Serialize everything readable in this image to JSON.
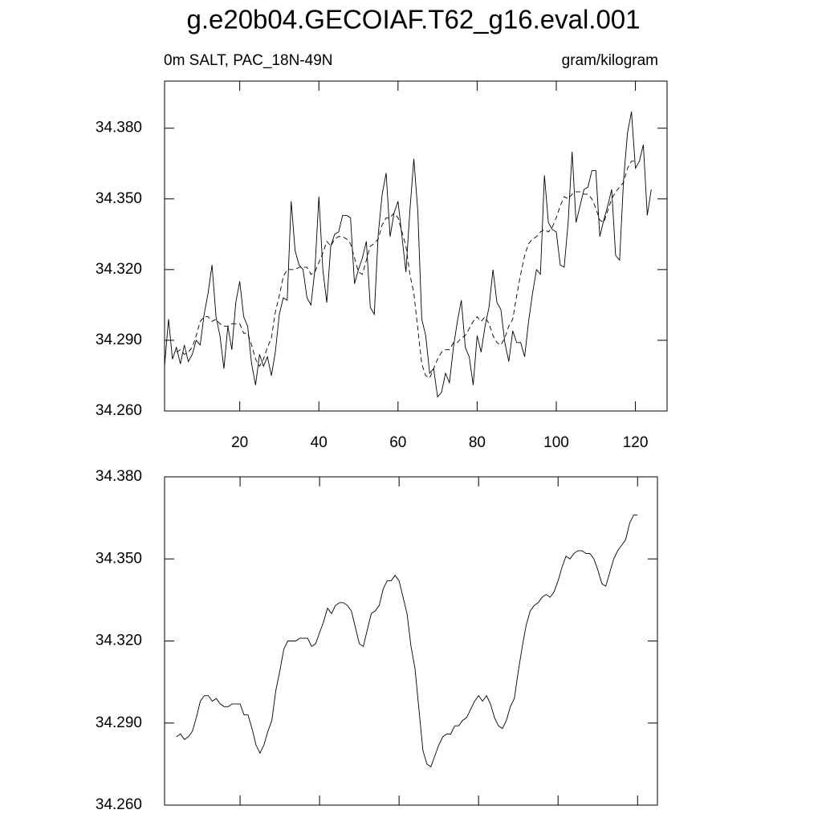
{
  "chart_data": [
    {
      "type": "line",
      "title": "g.e20b04.GECOIAF.T62_g16.eval.001",
      "subtitle_left": "0m SALT, PAC_18N-49N",
      "subtitle_right": "gram/kilogram",
      "xlim": [
        1,
        128
      ],
      "ylim": [
        34.26,
        34.4
      ],
      "xticks": [
        20,
        40,
        60,
        80,
        100,
        120
      ],
      "yticks": [
        {
          "value": 34.26,
          "label": "34.260"
        },
        {
          "value": 34.29,
          "label": "34.290"
        },
        {
          "value": 34.32,
          "label": "34.320"
        },
        {
          "value": 34.35,
          "label": "34.350"
        },
        {
          "value": 34.38,
          "label": "34.380"
        }
      ],
      "series": [
        {
          "color": "#000000",
          "dash": false,
          "x": [
            1,
            2,
            3,
            4,
            5,
            6,
            7,
            8,
            9,
            10,
            11,
            12,
            13,
            14,
            15,
            16,
            17,
            18,
            19,
            20,
            21,
            22,
            23,
            24,
            25,
            26,
            27,
            28,
            29,
            30,
            31,
            32,
            33,
            34,
            35,
            36,
            37,
            38,
            39,
            40,
            41,
            42,
            43,
            44,
            45,
            46,
            47,
            48,
            49,
            50,
            51,
            52,
            53,
            54,
            55,
            56,
            57,
            58,
            59,
            60,
            61,
            62,
            63,
            64,
            65,
            66,
            67,
            68,
            69,
            70,
            71,
            72,
            73,
            74,
            75,
            76,
            77,
            78,
            79,
            80,
            81,
            82,
            83,
            84,
            85,
            86,
            87,
            88,
            89,
            90,
            91,
            92,
            93,
            94,
            95,
            96,
            97,
            98,
            99,
            100,
            101,
            102,
            103,
            104,
            105,
            106,
            107,
            108,
            109,
            110,
            111,
            112,
            113,
            114,
            115,
            116,
            117,
            118,
            119,
            120,
            121,
            122,
            123,
            124
          ],
          "values": [
            34.279,
            34.299,
            34.282,
            34.287,
            34.28,
            34.288,
            34.281,
            34.284,
            34.29,
            34.288,
            34.301,
            34.31,
            34.322,
            34.3,
            34.292,
            34.278,
            34.296,
            34.286,
            34.306,
            34.315,
            34.3,
            34.296,
            34.28,
            34.271,
            34.284,
            34.279,
            34.283,
            34.275,
            34.285,
            34.301,
            34.308,
            34.307,
            34.349,
            34.328,
            34.322,
            34.32,
            34.308,
            34.305,
            34.32,
            34.351,
            34.32,
            34.306,
            34.33,
            34.335,
            34.336,
            34.343,
            34.343,
            34.342,
            34.314,
            34.32,
            34.325,
            34.332,
            34.304,
            34.301,
            34.335,
            34.352,
            34.361,
            34.334,
            34.344,
            34.349,
            34.334,
            34.319,
            34.345,
            34.367,
            34.345,
            34.299,
            34.292,
            34.276,
            34.278,
            34.266,
            34.268,
            34.276,
            34.272,
            34.287,
            34.298,
            34.307,
            34.287,
            34.283,
            34.271,
            34.292,
            34.285,
            34.296,
            34.304,
            34.32,
            34.306,
            34.303,
            34.289,
            34.281,
            34.294,
            34.289,
            34.289,
            34.283,
            34.298,
            34.31,
            34.32,
            34.318,
            34.36,
            34.34,
            34.337,
            34.336,
            34.322,
            34.321,
            34.34,
            34.37,
            34.34,
            34.347,
            34.354,
            34.355,
            34.362,
            34.362,
            34.334,
            34.341,
            34.347,
            34.354,
            34.326,
            34.324,
            34.358,
            34.378,
            34.387,
            34.363,
            34.366,
            34.373,
            34.343,
            34.354
          ]
        },
        {
          "color": "#000000",
          "dash": true,
          "x": [
            4,
            5,
            6,
            7,
            8,
            9,
            10,
            11,
            12,
            13,
            14,
            15,
            16,
            17,
            18,
            19,
            20,
            21,
            22,
            23,
            24,
            25,
            26,
            27,
            28,
            29,
            30,
            31,
            32,
            33,
            34,
            35,
            36,
            37,
            38,
            39,
            40,
            41,
            42,
            43,
            44,
            45,
            46,
            47,
            48,
            49,
            50,
            51,
            52,
            53,
            54,
            55,
            56,
            57,
            58,
            59,
            60,
            61,
            62,
            63,
            64,
            65,
            66,
            67,
            68,
            69,
            70,
            71,
            72,
            73,
            74,
            75,
            76,
            77,
            78,
            79,
            80,
            81,
            82,
            83,
            84,
            85,
            86,
            87,
            88,
            89,
            90,
            91,
            92,
            93,
            94,
            95,
            96,
            97,
            98,
            99,
            100,
            101,
            102,
            103,
            104,
            105,
            106,
            107,
            108,
            109,
            110,
            111,
            112,
            113,
            114,
            115,
            116,
            117,
            118,
            119,
            120
          ],
          "values": [
            34.285,
            34.286,
            34.284,
            34.285,
            34.287,
            34.292,
            34.298,
            34.3,
            34.3,
            34.298,
            34.299,
            34.297,
            34.296,
            34.296,
            34.297,
            34.297,
            34.297,
            34.293,
            34.293,
            34.288,
            34.282,
            34.279,
            34.282,
            34.287,
            34.291,
            34.302,
            34.309,
            34.317,
            34.32,
            34.32,
            34.32,
            34.321,
            34.321,
            34.321,
            34.318,
            34.319,
            34.323,
            34.327,
            34.332,
            34.33,
            34.333,
            34.334,
            34.334,
            34.333,
            34.331,
            34.325,
            34.319,
            34.318,
            34.324,
            34.33,
            34.331,
            34.333,
            34.339,
            34.342,
            34.342,
            34.344,
            34.342,
            34.336,
            34.33,
            34.318,
            34.31,
            34.295,
            34.28,
            34.275,
            34.274,
            34.278,
            34.282,
            34.285,
            34.286,
            34.286,
            34.289,
            34.289,
            34.291,
            34.292,
            34.295,
            34.298,
            34.3,
            34.298,
            34.3,
            34.297,
            34.292,
            34.289,
            34.288,
            34.291,
            34.296,
            34.299,
            34.309,
            34.318,
            34.326,
            34.331,
            34.333,
            34.334,
            34.336,
            34.337,
            34.336,
            34.338,
            34.342,
            34.347,
            34.351,
            34.35,
            34.352,
            34.353,
            34.353,
            34.352,
            34.352,
            34.35,
            34.346,
            34.341,
            34.34,
            34.345,
            34.35,
            34.353,
            34.355,
            34.357,
            34.363,
            34.366,
            34.366
          ]
        }
      ]
    },
    {
      "type": "line",
      "xlim": [
        1,
        125
      ],
      "ylim": [
        34.26,
        34.38
      ],
      "yticks": [
        {
          "value": 34.26,
          "label": "34.260"
        },
        {
          "value": 34.29,
          "label": "34.290"
        },
        {
          "value": 34.32,
          "label": "34.320"
        },
        {
          "value": 34.35,
          "label": "34.350"
        },
        {
          "value": 34.38,
          "label": "34.380"
        }
      ],
      "series": [
        {
          "color": "#000000",
          "dash": false,
          "x": [
            4,
            5,
            6,
            7,
            8,
            9,
            10,
            11,
            12,
            13,
            14,
            15,
            16,
            17,
            18,
            19,
            20,
            21,
            22,
            23,
            24,
            25,
            26,
            27,
            28,
            29,
            30,
            31,
            32,
            33,
            34,
            35,
            36,
            37,
            38,
            39,
            40,
            41,
            42,
            43,
            44,
            45,
            46,
            47,
            48,
            49,
            50,
            51,
            52,
            53,
            54,
            55,
            56,
            57,
            58,
            59,
            60,
            61,
            62,
            63,
            64,
            65,
            66,
            67,
            68,
            69,
            70,
            71,
            72,
            73,
            74,
            75,
            76,
            77,
            78,
            79,
            80,
            81,
            82,
            83,
            84,
            85,
            86,
            87,
            88,
            89,
            90,
            91,
            92,
            93,
            94,
            95,
            96,
            97,
            98,
            99,
            100,
            101,
            102,
            103,
            104,
            105,
            106,
            107,
            108,
            109,
            110,
            111,
            112,
            113,
            114,
            115,
            116,
            117,
            118,
            119,
            120
          ],
          "values": [
            34.285,
            34.286,
            34.284,
            34.285,
            34.287,
            34.292,
            34.298,
            34.3,
            34.3,
            34.298,
            34.299,
            34.297,
            34.296,
            34.296,
            34.297,
            34.297,
            34.297,
            34.293,
            34.293,
            34.288,
            34.282,
            34.279,
            34.282,
            34.287,
            34.291,
            34.302,
            34.309,
            34.317,
            34.32,
            34.32,
            34.32,
            34.321,
            34.321,
            34.321,
            34.318,
            34.319,
            34.323,
            34.327,
            34.332,
            34.33,
            34.333,
            34.334,
            34.334,
            34.333,
            34.331,
            34.325,
            34.319,
            34.318,
            34.324,
            34.33,
            34.331,
            34.333,
            34.339,
            34.342,
            34.342,
            34.344,
            34.342,
            34.336,
            34.33,
            34.318,
            34.31,
            34.295,
            34.28,
            34.275,
            34.274,
            34.278,
            34.282,
            34.285,
            34.286,
            34.286,
            34.289,
            34.289,
            34.291,
            34.292,
            34.295,
            34.298,
            34.3,
            34.298,
            34.3,
            34.297,
            34.292,
            34.289,
            34.288,
            34.291,
            34.296,
            34.299,
            34.309,
            34.318,
            34.326,
            34.331,
            34.333,
            34.334,
            34.336,
            34.337,
            34.336,
            34.338,
            34.342,
            34.347,
            34.351,
            34.35,
            34.352,
            34.353,
            34.353,
            34.352,
            34.352,
            34.35,
            34.346,
            34.341,
            34.34,
            34.345,
            34.35,
            34.353,
            34.355,
            34.357,
            34.363,
            34.366,
            34.366
          ]
        }
      ]
    }
  ]
}
